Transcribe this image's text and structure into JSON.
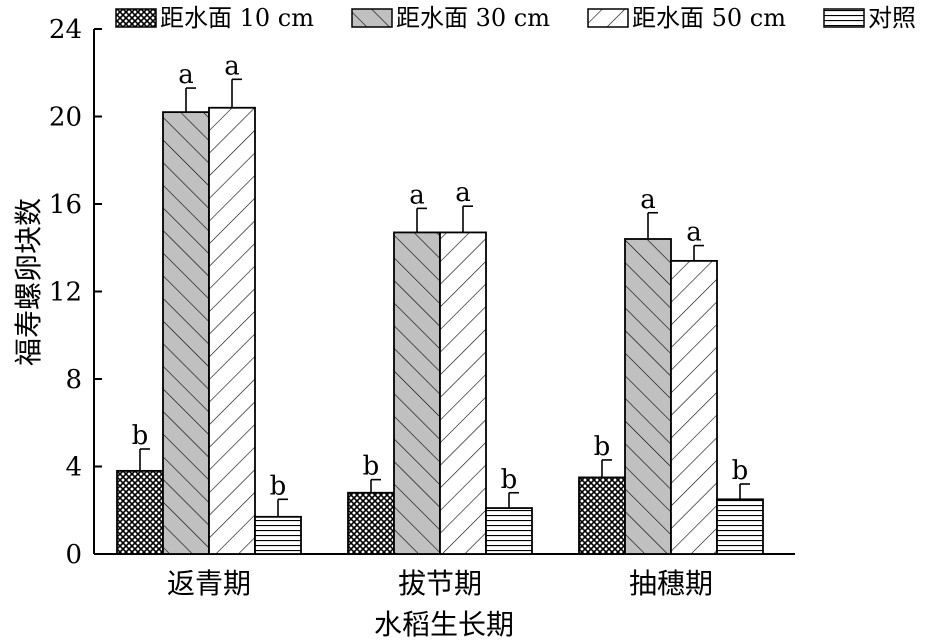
{
  "chart_data": {
    "type": "bar",
    "xlabel": "水稻生长期",
    "ylabel": "福寿螺卵块数",
    "ylim": [
      0,
      24
    ],
    "yticks": [
      0,
      4,
      8,
      12,
      16,
      20,
      24
    ],
    "grid": false,
    "legend_position": "top",
    "categories": [
      "返青期",
      "拔节期",
      "抽穗期"
    ],
    "series": [
      {
        "name": "距水面 10 cm",
        "pattern": "crosshatch",
        "fill": "#ffffff",
        "values": [
          3.8,
          2.8,
          3.5
        ],
        "errors": [
          1.0,
          0.6,
          0.8
        ],
        "labels": [
          "b",
          "b",
          "b"
        ]
      },
      {
        "name": "距水面 30 cm",
        "pattern": "diag-right",
        "fill": "#c0c0c0",
        "values": [
          20.2,
          14.7,
          14.4
        ],
        "errors": [
          1.1,
          1.1,
          1.2
        ],
        "labels": [
          "a",
          "a",
          "a"
        ]
      },
      {
        "name": "距水面 50 cm",
        "pattern": "diag-left",
        "fill": "#ffffff",
        "values": [
          20.4,
          14.7,
          13.4
        ],
        "errors": [
          1.3,
          1.2,
          0.7
        ],
        "labels": [
          "a",
          "a",
          "a"
        ]
      },
      {
        "name": "对照",
        "pattern": "horizontal",
        "fill": "#ffffff",
        "values": [
          1.7,
          2.1,
          2.5
        ],
        "errors": [
          0.8,
          0.7,
          0.7
        ],
        "labels": [
          "b",
          "b",
          "b"
        ]
      }
    ]
  }
}
